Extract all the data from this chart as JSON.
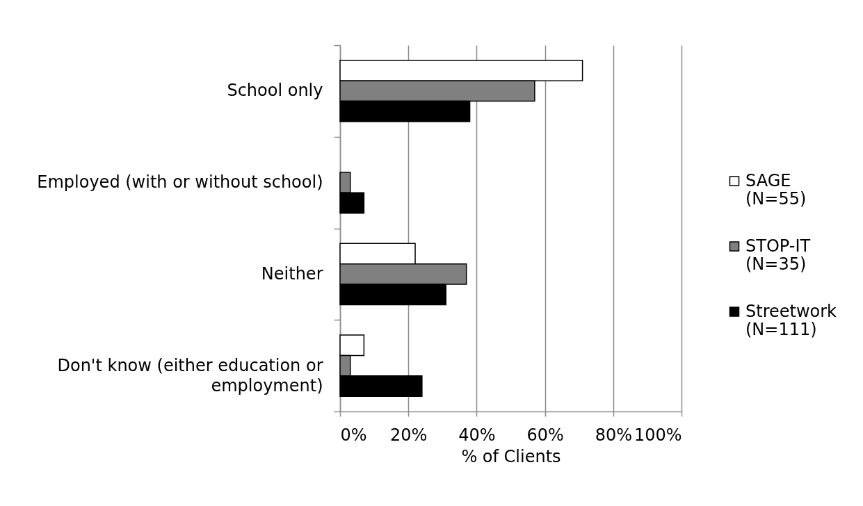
{
  "chart_data": {
    "type": "bar",
    "orientation": "horizontal",
    "categories": [
      "School only",
      "Employed (with or without school)",
      "Neither",
      "Don't know (either education or employment)"
    ],
    "series": [
      {
        "name": "SAGE (N=55)",
        "color": "#ffffff",
        "values": [
          71,
          null,
          22,
          7
        ]
      },
      {
        "name": "STOP-IT (N=35)",
        "color": "#808080",
        "values": [
          57,
          3,
          37,
          3
        ]
      },
      {
        "name": "Streetwork (N=111)",
        "color": "#000000",
        "values": [
          38,
          7,
          31,
          24
        ]
      }
    ],
    "xlabel": "% of Clients",
    "xlim": [
      0,
      100
    ],
    "xticks": [
      {
        "value": 0,
        "label": "0%"
      },
      {
        "value": 20,
        "label": "20%"
      },
      {
        "value": 40,
        "label": "40%"
      },
      {
        "value": 60,
        "label": "60%"
      },
      {
        "value": 80,
        "label": "80%"
      },
      {
        "value": 100,
        "label": "100%"
      }
    ],
    "grid": "x",
    "legend": "right"
  }
}
